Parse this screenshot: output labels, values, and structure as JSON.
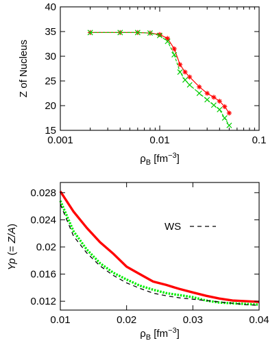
{
  "chart_data": [
    {
      "type": "line",
      "xscale": "log",
      "xlim": [
        0.001,
        0.1
      ],
      "ylim": [
        15,
        40
      ],
      "x_ticks": [
        {
          "value": 0.001,
          "label": "0.001"
        },
        {
          "value": 0.01,
          "label": "0.01"
        },
        {
          "value": 0.1,
          "label": "0.1"
        }
      ],
      "y_ticks": [
        {
          "value": 15,
          "label": "15"
        },
        {
          "value": 20,
          "label": "20"
        },
        {
          "value": 25,
          "label": "25"
        },
        {
          "value": 30,
          "label": "30"
        },
        {
          "value": 35,
          "label": "35"
        },
        {
          "value": 40,
          "label": "40"
        }
      ],
      "xlabel_main": "ρ",
      "xlabel_sub": "B",
      "xlabel_unit": " [fm",
      "xlabel_exp": "−3",
      "xlabel_close": "]",
      "ylabel": "Z of Nucleus",
      "series": [
        {
          "color": "#ff0000",
          "marker": "asterisk",
          "dash": "solid",
          "x": [
            0.002,
            0.004,
            0.006,
            0.008,
            0.01,
            0.012,
            0.014,
            0.016,
            0.018,
            0.02,
            0.025,
            0.03,
            0.035,
            0.04,
            0.045,
            0.05
          ],
          "y": [
            34.8,
            34.8,
            34.8,
            34.7,
            34.4,
            33.6,
            31.5,
            28.3,
            26.8,
            25.8,
            23.8,
            22.5,
            21.7,
            20.9,
            19.8,
            18.5
          ]
        },
        {
          "color": "#00cc00",
          "marker": "cross",
          "dash": "dashed",
          "x": [
            0.002,
            0.004,
            0.006,
            0.008,
            0.01,
            0.012,
            0.014,
            0.016,
            0.018,
            0.02,
            0.025,
            0.03,
            0.035,
            0.04,
            0.045,
            0.05
          ],
          "y": [
            34.8,
            34.8,
            34.8,
            34.7,
            34.2,
            33.0,
            30.3,
            26.8,
            25.2,
            24.2,
            22.5,
            21.2,
            20.1,
            19.2,
            17.5,
            16.0
          ]
        }
      ]
    },
    {
      "type": "line",
      "xlim": [
        0.01,
        0.04
      ],
      "ylim": [
        0.0107,
        0.0295
      ],
      "x_ticks": [
        {
          "value": 0.01,
          "label": "0.01"
        },
        {
          "value": 0.02,
          "label": "0.02"
        },
        {
          "value": 0.03,
          "label": "0.03"
        },
        {
          "value": 0.04,
          "label": "0.04"
        }
      ],
      "y_ticks": [
        {
          "value": 0.012,
          "label": "0.012"
        },
        {
          "value": 0.016,
          "label": "0.016"
        },
        {
          "value": 0.02,
          "label": "0.02"
        },
        {
          "value": 0.024,
          "label": "0.024"
        },
        {
          "value": 0.028,
          "label": "0.028"
        }
      ],
      "xlabel_main": "ρ",
      "xlabel_sub": "B",
      "xlabel_unit": " [fm",
      "xlabel_exp": "−3",
      "xlabel_close": "]",
      "ylabel_main": "Yp",
      "ylabel_open": "  (= ",
      "ylabel_ratio": "Z/A",
      "ylabel_close": ")",
      "legend": {
        "label": "WS",
        "placement": "upper-right"
      },
      "series": [
        {
          "color": "#ff0000",
          "dash": "solid",
          "x": [
            0.01,
            0.012,
            0.014,
            0.016,
            0.018,
            0.02,
            0.022,
            0.024,
            0.026,
            0.028,
            0.03,
            0.032,
            0.034,
            0.036,
            0.038,
            0.04
          ],
          "y": [
            0.0282,
            0.0252,
            0.0228,
            0.0207,
            0.019,
            0.0171,
            0.016,
            0.0149,
            0.0144,
            0.0138,
            0.0133,
            0.0128,
            0.0124,
            0.0121,
            0.012,
            0.0119
          ]
        },
        {
          "color": "#00ee00",
          "dash": "dotted",
          "x": [
            0.01,
            0.012,
            0.014,
            0.016,
            0.018,
            0.02,
            0.022,
            0.024,
            0.026,
            0.028,
            0.03,
            0.032,
            0.034,
            0.036,
            0.038,
            0.04
          ],
          "y": [
            0.0268,
            0.0223,
            0.0196,
            0.0176,
            0.0162,
            0.0152,
            0.0143,
            0.0137,
            0.0132,
            0.0129,
            0.0126,
            0.0121,
            0.0118,
            0.0117,
            0.0116,
            0.0115
          ]
        },
        {
          "name": "WS",
          "color": "#000000",
          "dash": "dashed",
          "x": [
            0.01,
            0.012,
            0.014,
            0.016,
            0.018,
            0.02,
            0.022,
            0.024,
            0.026,
            0.028,
            0.03,
            0.032,
            0.034,
            0.036,
            0.038,
            0.04
          ],
          "y": [
            0.0263,
            0.0216,
            0.0191,
            0.0172,
            0.0158,
            0.0147,
            0.0139,
            0.0132,
            0.0128,
            0.0125,
            0.0123,
            0.0121,
            0.0119,
            0.0117,
            0.0115,
            0.0114
          ]
        }
      ]
    }
  ]
}
